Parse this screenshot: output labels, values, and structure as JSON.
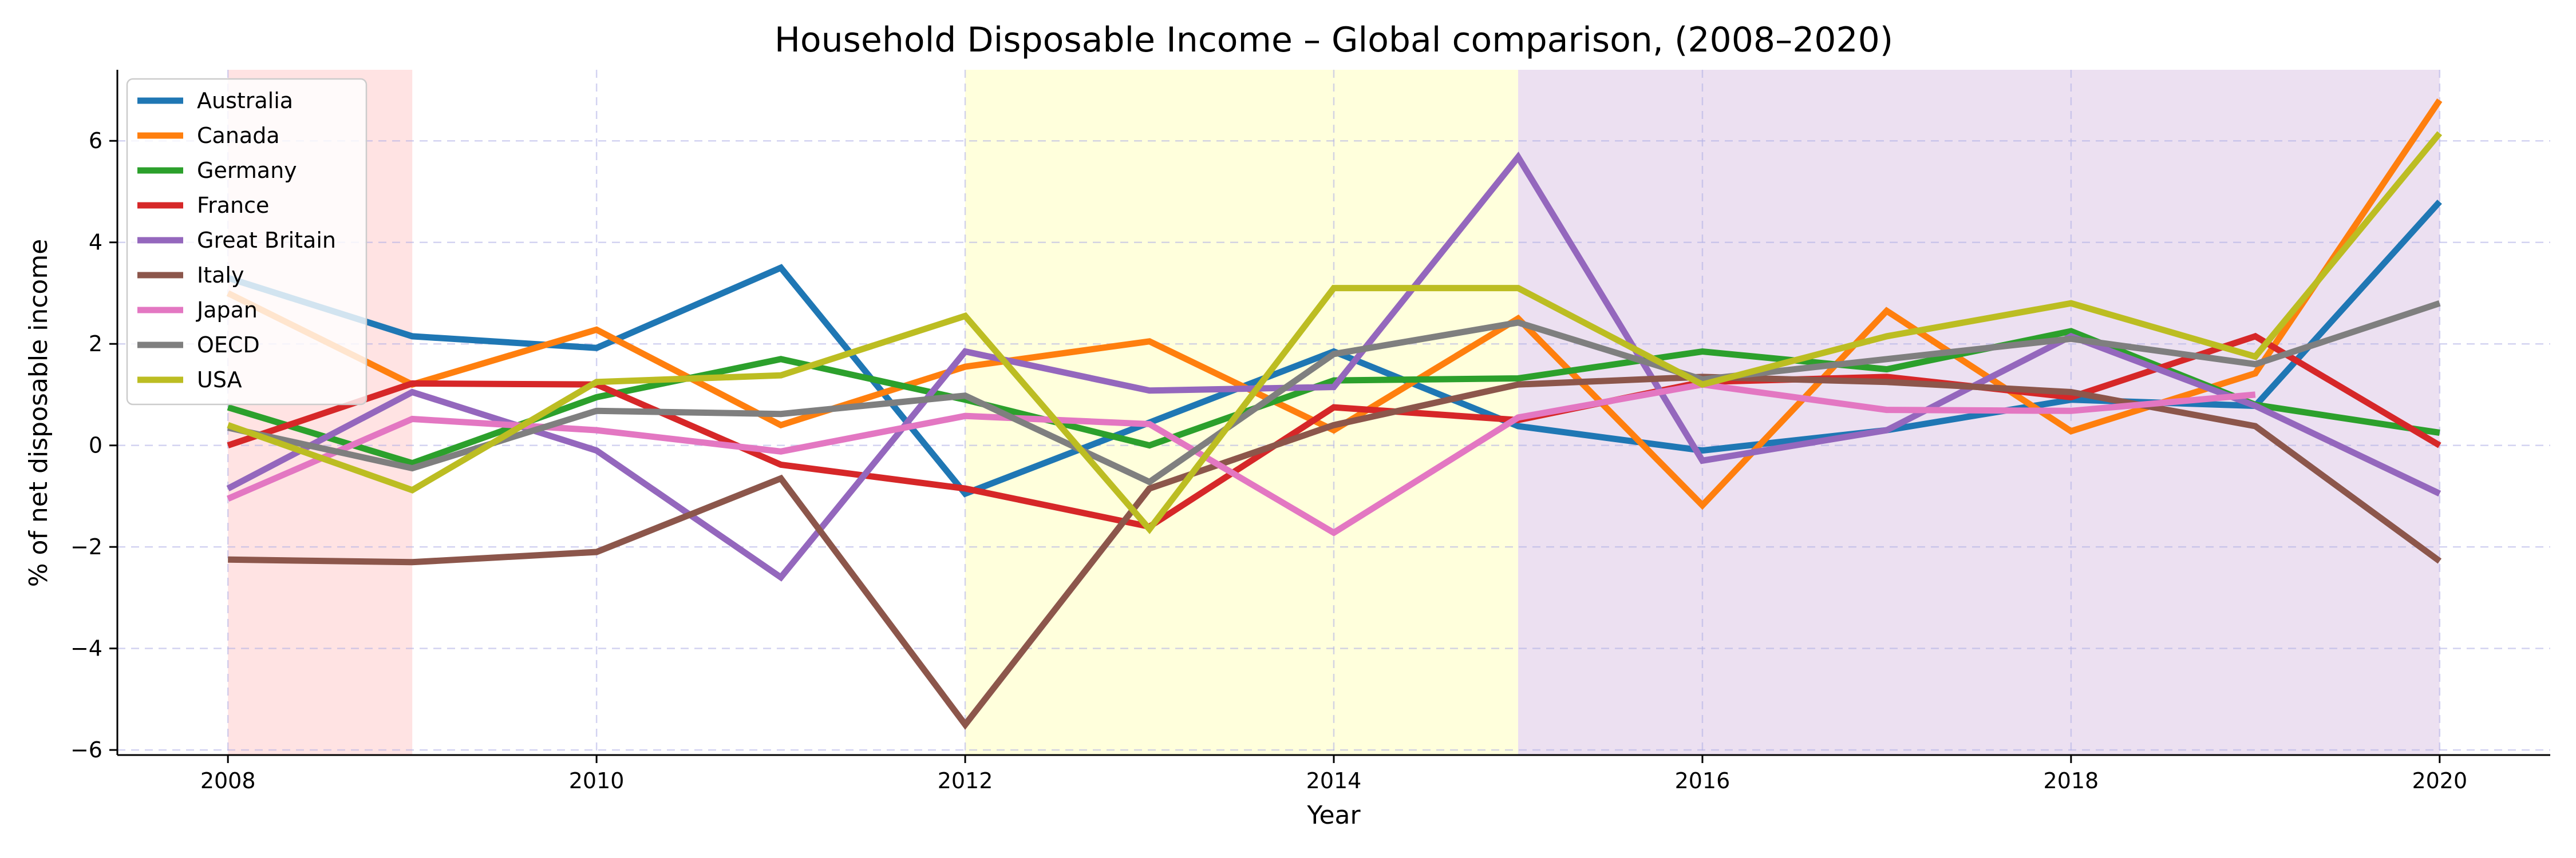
{
  "chart_data": {
    "type": "line",
    "title": "Household Disposable Income – Global comparison, (2008–2020)",
    "xlabel": "Year",
    "ylabel": "% of net disposable income",
    "x": [
      2008,
      2009,
      2010,
      2011,
      2012,
      2013,
      2014,
      2015,
      2016,
      2017,
      2018,
      2019,
      2020
    ],
    "xlim": [
      2007.4,
      2020.6
    ],
    "ylim": [
      -6.1,
      7.4
    ],
    "xticks": [
      2008,
      2010,
      2012,
      2014,
      2016,
      2018,
      2020
    ],
    "xtick_labels": [
      "2008",
      "2010",
      "2012",
      "2014",
      "2016",
      "2018",
      "2020"
    ],
    "yticks": [
      -6,
      -4,
      -2,
      0,
      2,
      4,
      6
    ],
    "ytick_labels": [
      "−6",
      "−4",
      "−2",
      "0",
      "2",
      "4",
      "6"
    ],
    "grid": true,
    "legend_position": "top-left",
    "shaded_periods": [
      {
        "start": 2008,
        "end": 2009,
        "color": "#ffc8c8",
        "opacity": 0.5
      },
      {
        "start": 2012,
        "end": 2015,
        "color": "#ffffc0",
        "opacity": 0.55
      },
      {
        "start": 2015,
        "end": 2020,
        "color": "#dcc6e6",
        "opacity": 0.55
      }
    ],
    "series": [
      {
        "name": "Australia",
        "color": "#1f77b4",
        "values": [
          3.3,
          2.15,
          1.92,
          3.5,
          -0.95,
          0.45,
          1.85,
          0.38,
          -0.1,
          0.3,
          0.9,
          0.78,
          4.8
        ]
      },
      {
        "name": "Canada",
        "color": "#ff7f0e",
        "values": [
          3.0,
          1.2,
          2.28,
          0.4,
          1.55,
          2.05,
          0.3,
          2.5,
          -1.18,
          2.65,
          0.28,
          1.42,
          6.8
        ]
      },
      {
        "name": "Germany",
        "color": "#2ca02c",
        "values": [
          0.75,
          -0.35,
          0.95,
          1.7,
          0.9,
          0.0,
          1.28,
          1.32,
          1.85,
          1.5,
          2.25,
          0.8,
          0.25
        ]
      },
      {
        "name": "France",
        "color": "#d62728",
        "values": [
          0.0,
          1.22,
          1.2,
          -0.38,
          -0.85,
          -1.6,
          0.75,
          0.5,
          1.25,
          1.35,
          0.95,
          2.15,
          0.0
        ]
      },
      {
        "name": "Great Britain",
        "color": "#9467bd",
        "values": [
          -0.85,
          1.05,
          -0.1,
          -2.6,
          1.85,
          1.08,
          1.15,
          5.68,
          -0.3,
          0.3,
          2.15,
          0.78,
          -0.95
        ]
      },
      {
        "name": "Italy",
        "color": "#8c564b",
        "values": [
          -2.25,
          -2.3,
          -2.1,
          -0.65,
          -5.5,
          -0.85,
          0.4,
          1.2,
          1.35,
          1.25,
          1.05,
          0.38,
          -2.28
        ]
      },
      {
        "name": "Japan",
        "color": "#e377c2",
        "values": [
          -1.05,
          0.52,
          0.3,
          -0.12,
          0.58,
          0.42,
          -1.72,
          0.55,
          1.2,
          0.7,
          0.68,
          1.0,
          null
        ]
      },
      {
        "name": "OECD",
        "color": "#7f7f7f",
        "values": [
          0.35,
          -0.45,
          0.68,
          0.62,
          0.98,
          -0.72,
          1.8,
          2.42,
          1.3,
          1.7,
          2.1,
          1.6,
          2.8
        ]
      },
      {
        "name": "USA",
        "color": "#bcbd22",
        "values": [
          0.4,
          -0.88,
          1.25,
          1.38,
          2.55,
          -1.65,
          3.1,
          3.1,
          1.2,
          2.15,
          2.8,
          1.75,
          6.15
        ]
      }
    ]
  }
}
